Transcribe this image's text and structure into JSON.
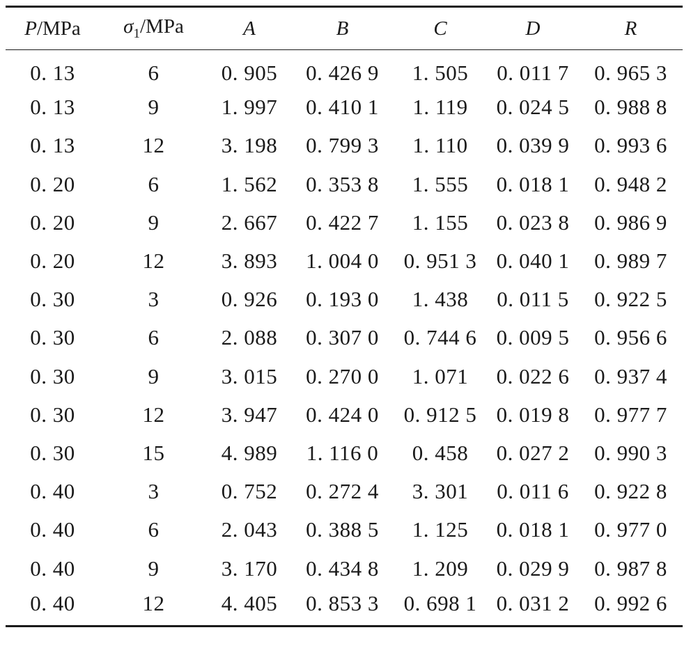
{
  "table": {
    "headers": {
      "p": {
        "var": "P",
        "unit": "/MPa"
      },
      "sigma": {
        "var": "σ",
        "sub": "1",
        "unit": "/MPa"
      },
      "a": "A",
      "b": "B",
      "c": "C",
      "d": "D",
      "r": "R"
    },
    "rows": [
      [
        "0. 13",
        "6",
        "0. 905",
        "0. 426 9",
        "1. 505",
        "0. 011 7",
        "0. 965 3"
      ],
      [
        "0. 13",
        "9",
        "1. 997",
        "0. 410 1",
        "1. 119",
        "0. 024 5",
        "0. 988 8"
      ],
      [
        "0. 13",
        "12",
        "3. 198",
        "0. 799 3",
        "1. 110",
        "0. 039 9",
        "0. 993 6"
      ],
      [
        "0. 20",
        "6",
        "1. 562",
        "0. 353 8",
        "1. 555",
        "0. 018 1",
        "0. 948 2"
      ],
      [
        "0. 20",
        "9",
        "2. 667",
        "0. 422 7",
        "1. 155",
        "0. 023 8",
        "0. 986 9"
      ],
      [
        "0. 20",
        "12",
        "3. 893",
        "1. 004 0",
        "0. 951 3",
        "0. 040 1",
        "0. 989 7"
      ],
      [
        "0. 30",
        "3",
        "0. 926",
        "0. 193 0",
        "1. 438",
        "0. 011 5",
        "0. 922 5"
      ],
      [
        "0. 30",
        "6",
        "2. 088",
        "0. 307 0",
        "0. 744 6",
        "0. 009 5",
        "0. 956 6"
      ],
      [
        "0. 30",
        "9",
        "3. 015",
        "0. 270 0",
        "1. 071",
        "0. 022 6",
        "0. 937 4"
      ],
      [
        "0. 30",
        "12",
        "3. 947",
        "0. 424 0",
        "0. 912 5",
        "0. 019 8",
        "0. 977 7"
      ],
      [
        "0. 30",
        "15",
        "4. 989",
        "1. 116 0",
        "0. 458",
        "0. 027 2",
        "0. 990 3"
      ],
      [
        "0. 40",
        "3",
        "0. 752",
        "0. 272 4",
        "3. 301",
        "0. 011 6",
        "0. 922 8"
      ],
      [
        "0. 40",
        "6",
        "2. 043",
        "0. 388 5",
        "1. 125",
        "0. 018 1",
        "0. 977 0"
      ],
      [
        "0. 40",
        "9",
        "3. 170",
        "0. 434 8",
        "1. 209",
        "0. 029 9",
        "0. 987 8"
      ],
      [
        "0. 40",
        "12",
        "4. 405",
        "0. 853 3",
        "0. 698 1",
        "0. 031 2",
        "0. 992 6"
      ]
    ]
  }
}
